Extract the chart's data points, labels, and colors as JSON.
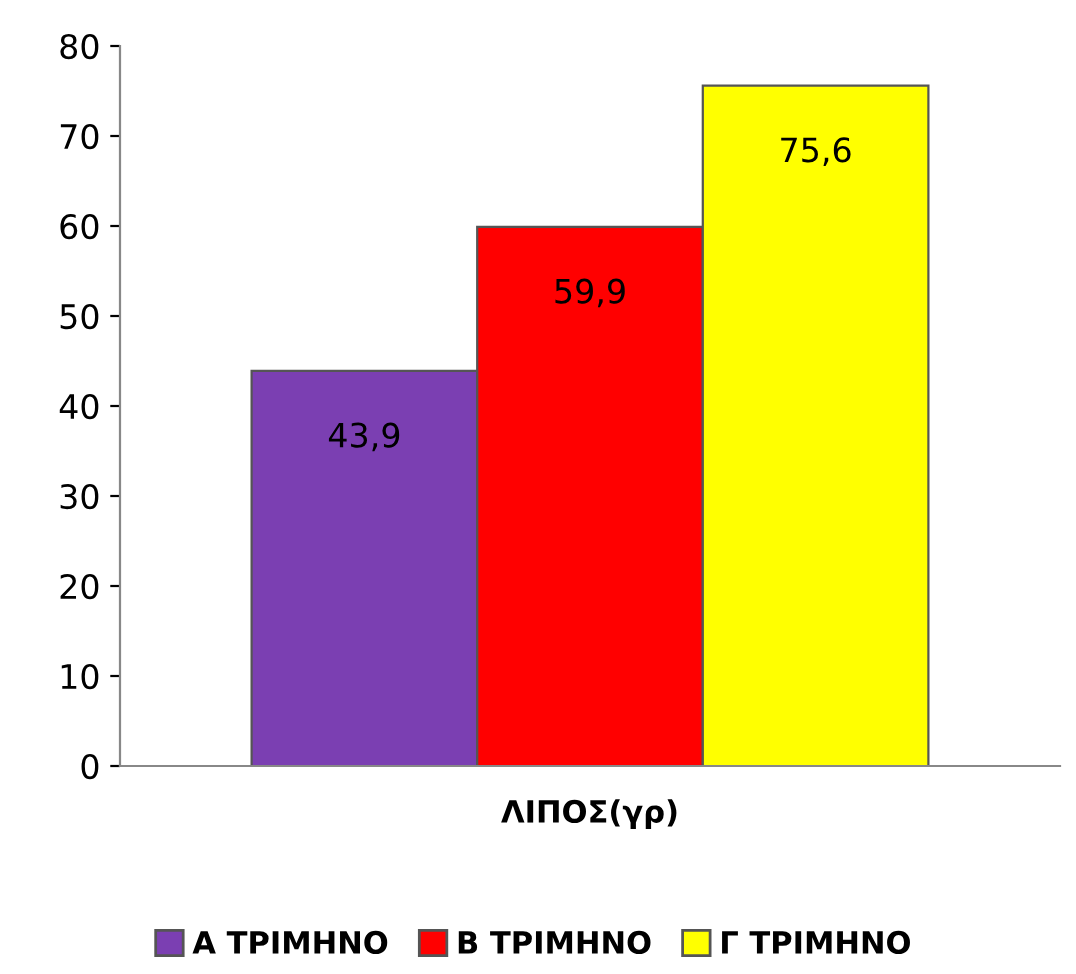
{
  "chart_data": {
    "type": "bar",
    "categories": [
      "ΛΙΠΟΣ(γρ)"
    ],
    "series": [
      {
        "name": "Α ΤΡΙΜΗΝΟ",
        "color": "#7b3fb2",
        "values": [
          43.9
        ],
        "value_labels": [
          "43,9"
        ]
      },
      {
        "name": "Β ΤΡΙΜΗΝΟ",
        "color": "#ff0000",
        "values": [
          59.9
        ],
        "value_labels": [
          "59,9"
        ]
      },
      {
        "name": "Γ ΤΡΙΜΗΝΟ",
        "color": "#ffff00",
        "values": [
          75.6
        ],
        "value_labels": [
          "75,6"
        ]
      }
    ],
    "ylim": [
      0,
      80
    ],
    "yticks": [
      0,
      10,
      20,
      30,
      40,
      50,
      60,
      70,
      80
    ],
    "grid": false,
    "legend": "bottom"
  }
}
